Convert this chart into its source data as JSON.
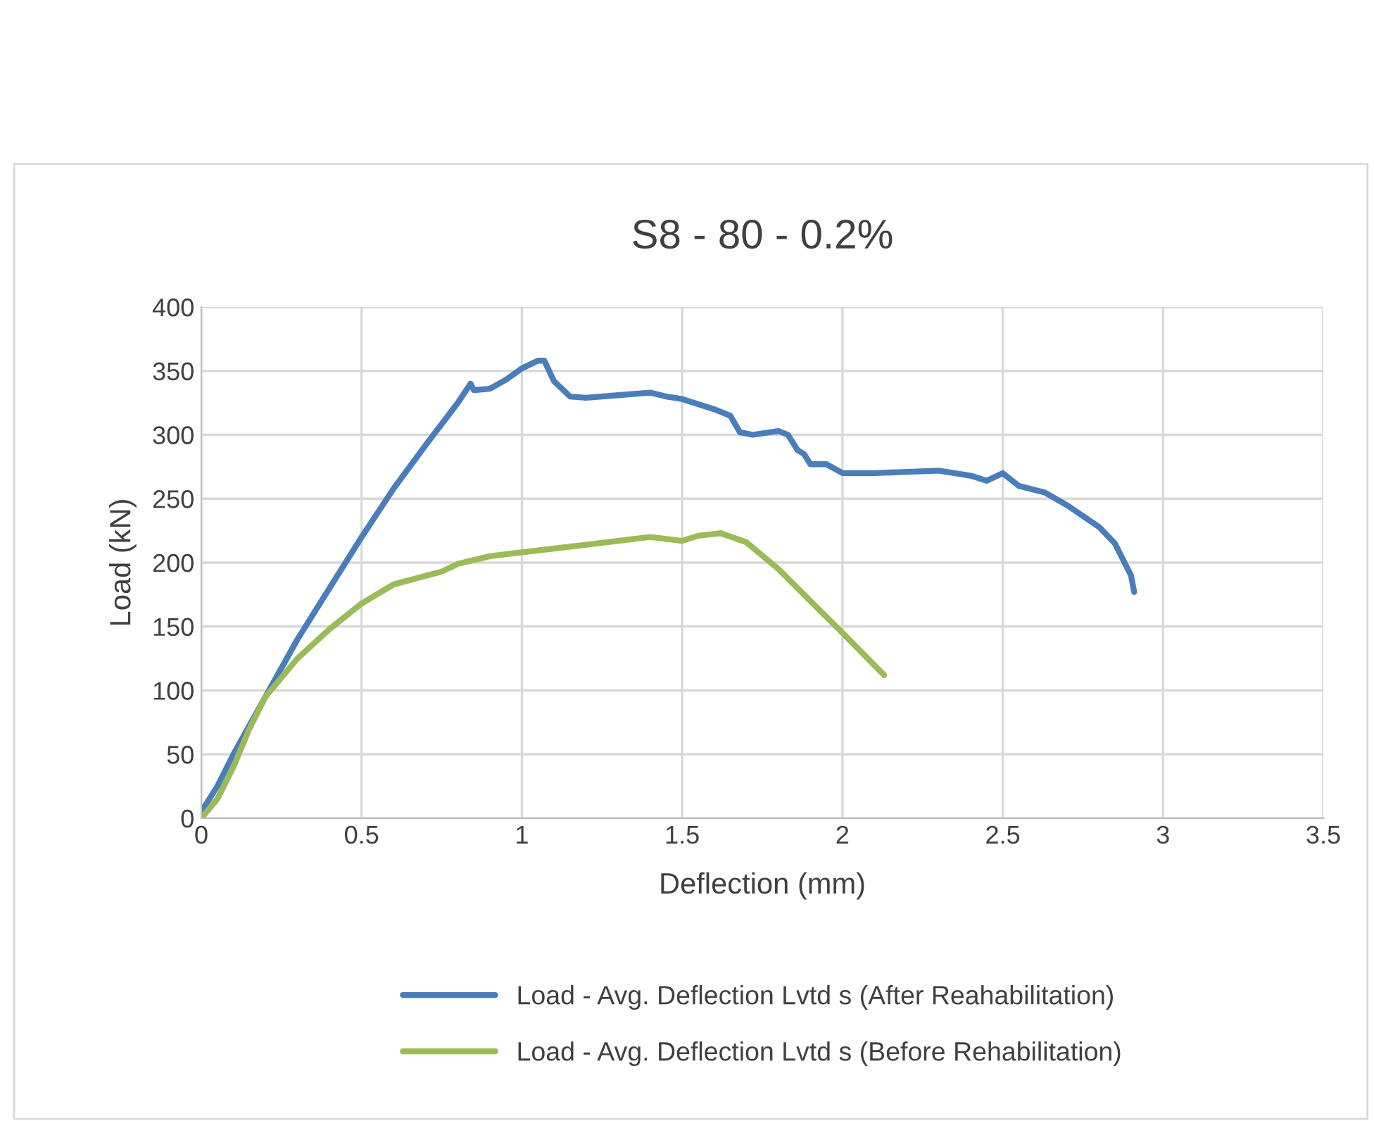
{
  "chart_data": {
    "type": "line",
    "title": "S8 - 80 - 0.2%",
    "xlabel": "Deflection (mm)",
    "ylabel": "Load (kN)",
    "xlim": [
      0,
      3.5
    ],
    "xticks": [
      0,
      0.5,
      1,
      1.5,
      2,
      2.5,
      3,
      3.5
    ],
    "ylim": [
      0,
      400
    ],
    "yticks": [
      0,
      50,
      100,
      150,
      200,
      250,
      300,
      350,
      400
    ],
    "grid": true,
    "legend": "bottom",
    "marker": "none",
    "line_style": "solid",
    "series": [
      {
        "name": "Load - Avg. Deflection Lvtd s (After Reahabilitation)",
        "color": "#4a7ebb",
        "x": [
          0,
          0.05,
          0.1,
          0.2,
          0.3,
          0.4,
          0.5,
          0.6,
          0.7,
          0.8,
          0.84,
          0.85,
          0.9,
          0.95,
          1.0,
          1.05,
          1.07,
          1.1,
          1.15,
          1.2,
          1.3,
          1.4,
          1.45,
          1.5,
          1.6,
          1.65,
          1.68,
          1.72,
          1.8,
          1.83,
          1.86,
          1.88,
          1.9,
          1.95,
          2.0,
          2.1,
          2.3,
          2.4,
          2.45,
          2.5,
          2.55,
          2.63,
          2.7,
          2.8,
          2.85,
          2.9,
          2.91
        ],
        "values": [
          5,
          25,
          50,
          95,
          140,
          180,
          220,
          258,
          292,
          325,
          340,
          335,
          336,
          343,
          352,
          358,
          358,
          342,
          330,
          329,
          331,
          333,
          330,
          328,
          320,
          315,
          302,
          300,
          303,
          300,
          288,
          285,
          277,
          277,
          270,
          270,
          272,
          268,
          264,
          270,
          260,
          255,
          245,
          228,
          215,
          190,
          177
        ]
      },
      {
        "name": "Load - Avg. Deflection Lvtd s (Before Rehabilitation)",
        "color": "#9bbb59",
        "x": [
          0,
          0.05,
          0.1,
          0.15,
          0.2,
          0.3,
          0.4,
          0.5,
          0.6,
          0.75,
          0.8,
          0.9,
          1.0,
          1.2,
          1.4,
          1.5,
          1.55,
          1.62,
          1.7,
          1.8,
          1.9,
          2.0,
          2.13
        ],
        "values": [
          0,
          15,
          40,
          70,
          95,
          125,
          148,
          168,
          183,
          193,
          199,
          205,
          208,
          214,
          220,
          217,
          221,
          223,
          216,
          195,
          170,
          145,
          112
        ]
      }
    ]
  }
}
